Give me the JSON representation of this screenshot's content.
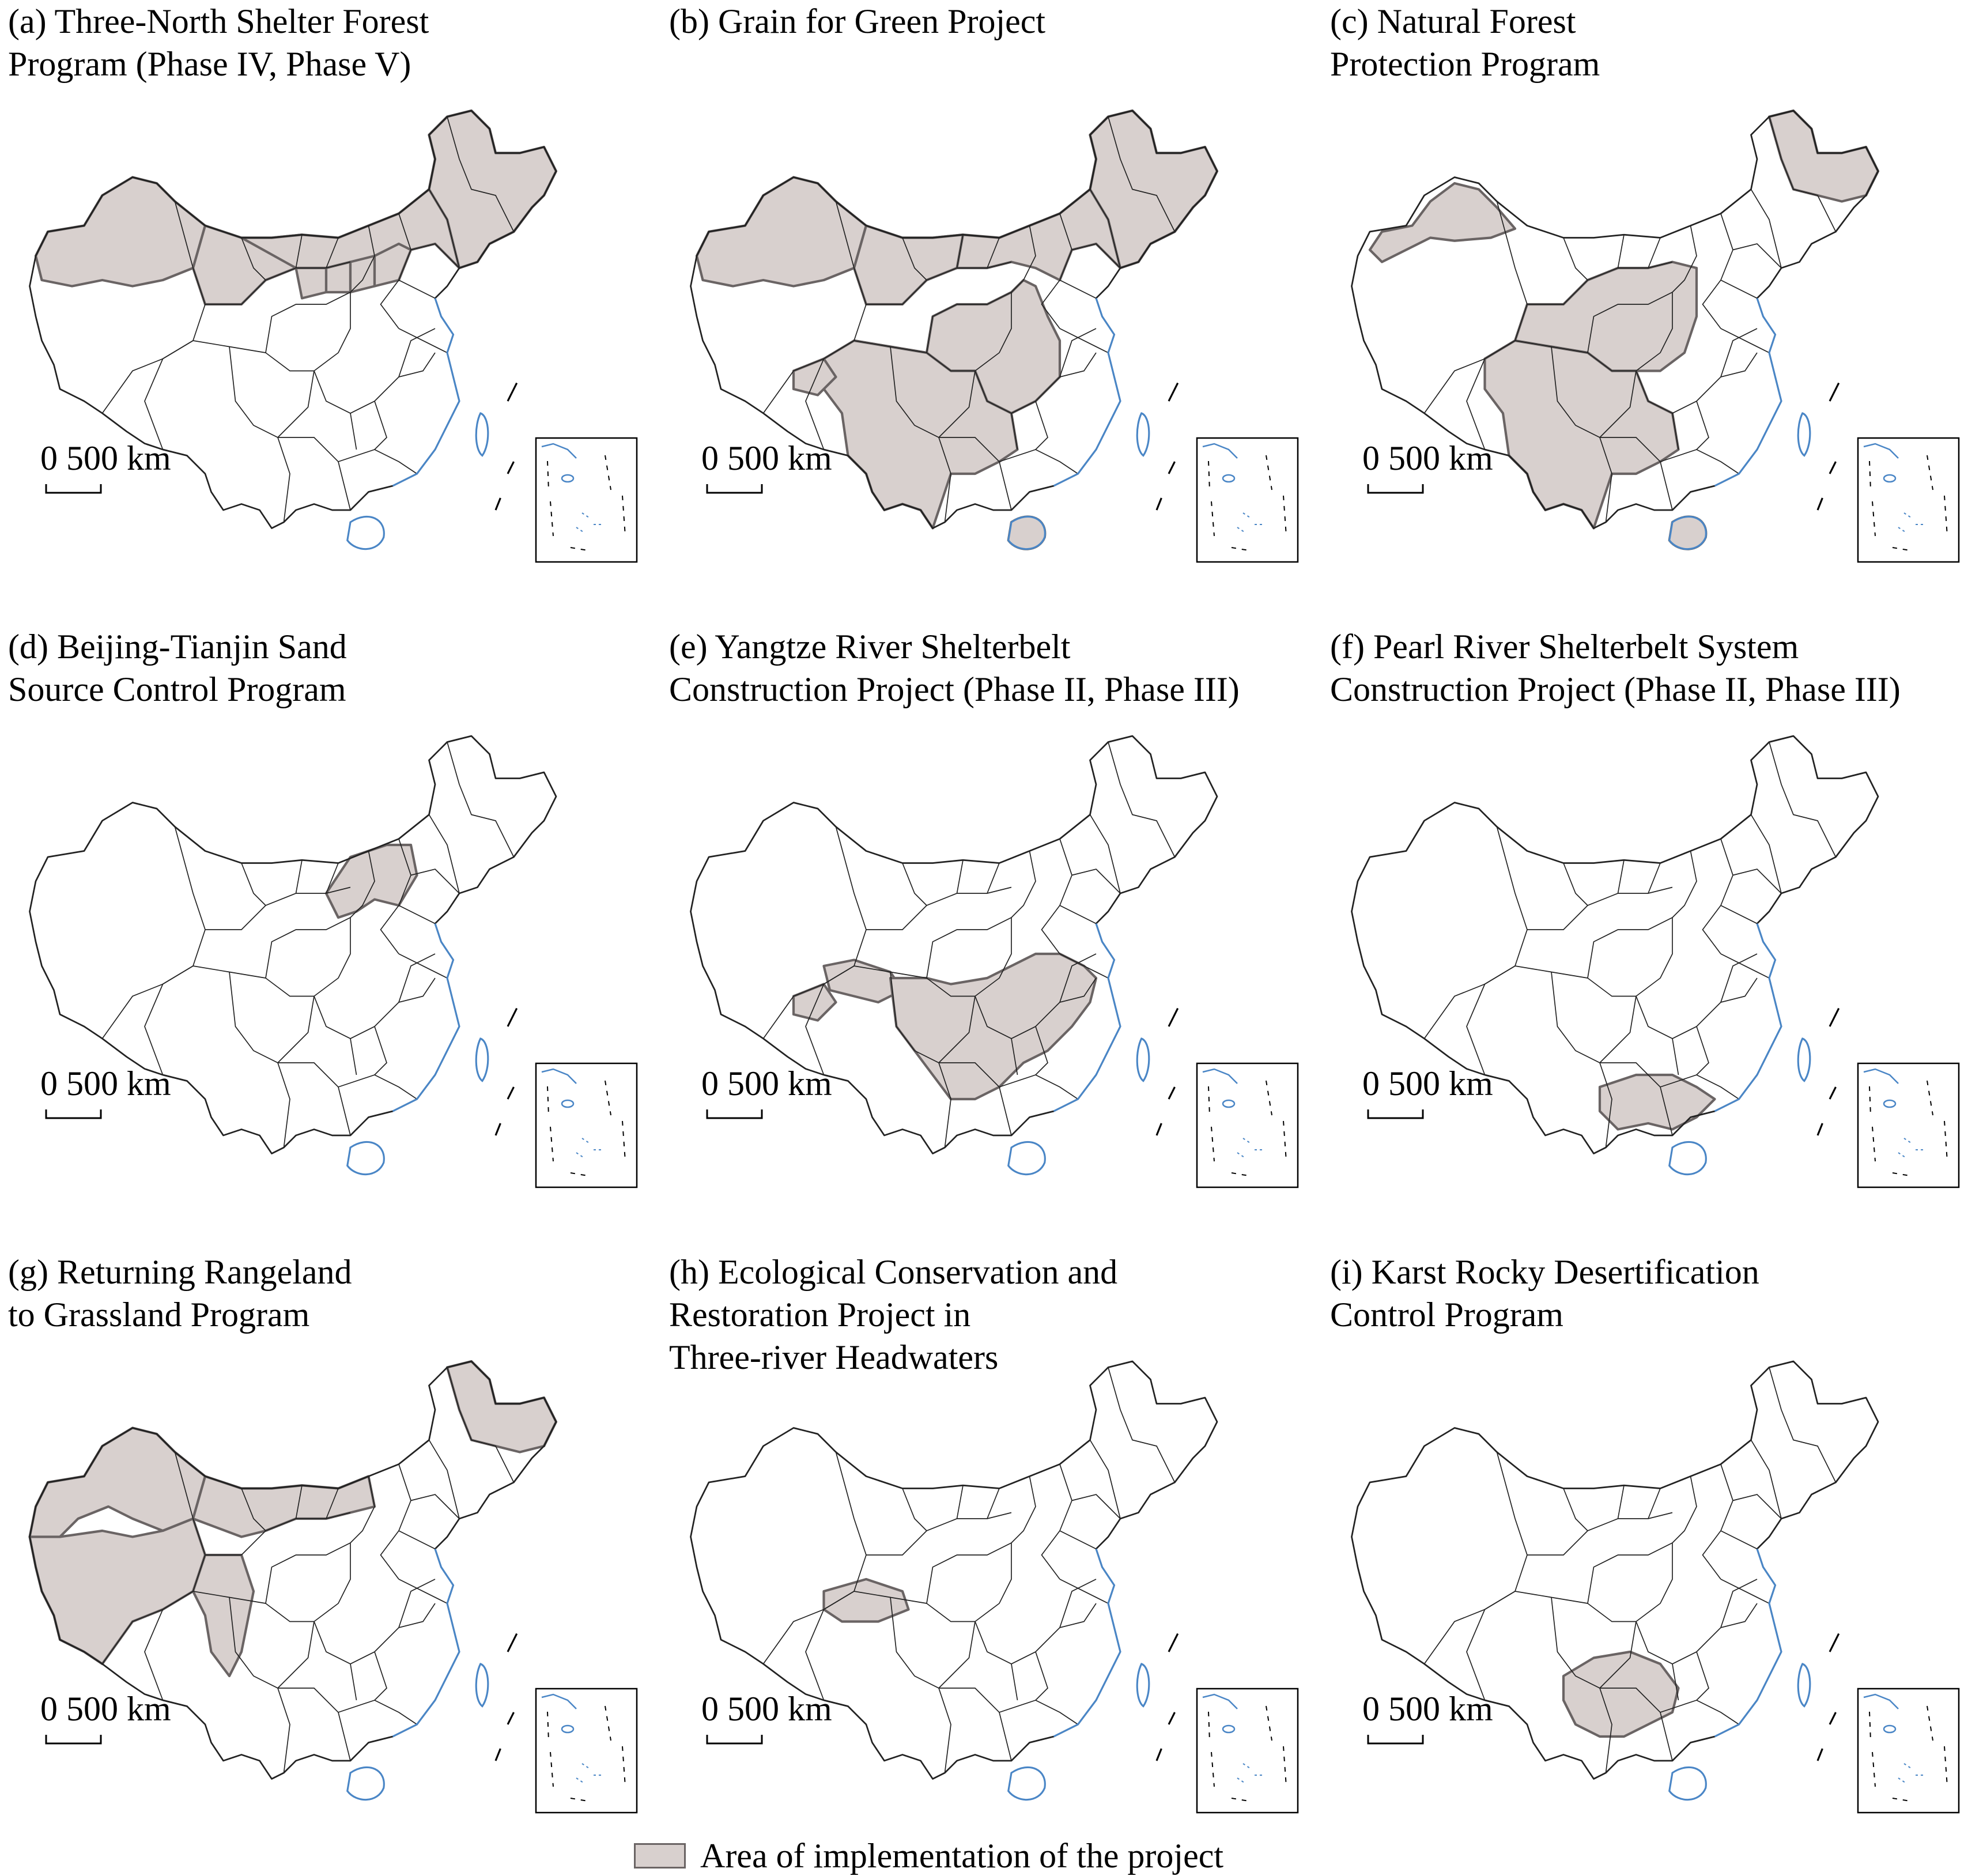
{
  "panels": [
    {
      "id": "a",
      "title_lines": [
        "(a) Three-North Shelter Forest",
        "Program (Phase IV, Phase V)"
      ],
      "highlight": [
        "xinjiang",
        "gansu_n",
        "inner_mongolia",
        "ningxia",
        "shaanxi_n",
        "shanxi_n",
        "hebei_n",
        "northeast"
      ]
    },
    {
      "id": "b",
      "title_lines": [
        "(b) Grain for Green Project"
      ],
      "highlight": [
        "xinjiang",
        "inner_mongolia",
        "northeast",
        "gansu_n",
        "central",
        "southwest",
        "tibet_patch",
        "hainan"
      ]
    },
    {
      "id": "c",
      "title_lines": [
        "Natural Forest",
        "Protection Program"
      ],
      "title_prefix": "(c)",
      "highlight": [
        "xinjiang_n",
        "heilongjiang",
        "central_w",
        "southwest",
        "hainan"
      ]
    },
    {
      "id": "d",
      "title_lines": [
        "(d) Beijing-Tianjin Sand",
        "Source Control Program"
      ],
      "highlight": [
        "beijing_tianjin"
      ]
    },
    {
      "id": "e",
      "title_lines": [
        "(e) Yangtze River Shelterbelt",
        "Construction Project (Phase II, Phase III)"
      ],
      "highlight": [
        "qinghai_s",
        "yangtze",
        "tibet_patch"
      ]
    },
    {
      "id": "f",
      "title_lines": [
        "(f) Pearl River Shelterbelt System",
        "Construction Project (Phase II, Phase III)"
      ],
      "highlight": [
        "pearl"
      ]
    },
    {
      "id": "g",
      "title_lines": [
        "(g) Returning Rangeland",
        "to Grassland Program"
      ],
      "highlight": [
        "xinjiang_g",
        "tibet",
        "inner_mongolia_w",
        "heilongjiang",
        "sichuan_w"
      ]
    },
    {
      "id": "h",
      "title_lines": [
        "(h) Ecological Conservation and",
        "Restoration Project in",
        "Three-river Headwaters"
      ],
      "highlight": [
        "three_river"
      ]
    },
    {
      "id": "i",
      "title_lines": [
        "(i) Karst Rocky Desertification",
        "Control Program"
      ],
      "highlight": [
        "karst"
      ]
    }
  ],
  "scale_label": "0  500 km",
  "legend_label": "Area of implementation of the project",
  "colors": {
    "highlight_fill": "#d8d0ce",
    "highlight_stroke": "#6a6464",
    "border": "#222222",
    "coast": "#4a86c6"
  }
}
